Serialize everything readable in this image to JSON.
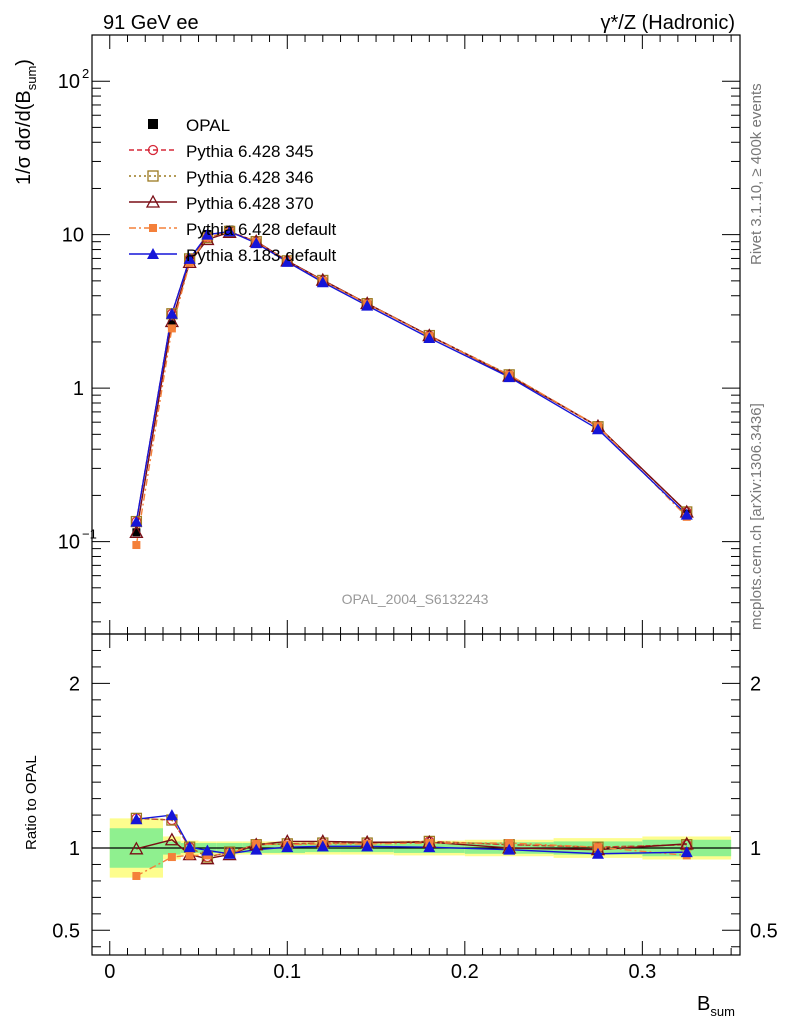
{
  "chart_data": {
    "type": "line",
    "header_left": "91 GeV ee",
    "header_right": "γ*/Z (Hadronic)",
    "watermark": "OPAL_2004_S6132243",
    "side_label_top": "Rivet 3.1.10, ≥ 400k events",
    "side_label_bottom": "mcplots.cern.ch [arXiv:1306.3436]",
    "ylabel_main": "1/σ dσ/d(B_sum)",
    "ylabel_ratio": "Ratio to OPAL",
    "xlabel": "B_sum",
    "xlim": [
      -0.01,
      0.355
    ],
    "ylim_main": [
      0.025,
      200
    ],
    "ylim_ratio": [
      0.35,
      2.3
    ],
    "x_ticks": [
      "0",
      "0.1",
      "0.2",
      "0.3"
    ],
    "x_tick_values": [
      0,
      0.1,
      0.2,
      0.3
    ],
    "y_ticks_main": [
      "10⁻¹",
      "1",
      "10",
      "10²"
    ],
    "y_tick_values_main": [
      0.1,
      1,
      10,
      100
    ],
    "y_ticks_ratio": [
      "0.5",
      "1",
      "2"
    ],
    "y_tick_values_ratio": [
      0.5,
      1,
      2
    ],
    "x": [
      0.015,
      0.035,
      0.045,
      0.055,
      0.0675,
      0.0825,
      0.1,
      0.12,
      0.145,
      0.18,
      0.225,
      0.275,
      0.325
    ],
    "bin_edges": [
      0,
      0.03,
      0.04,
      0.05,
      0.06,
      0.075,
      0.09,
      0.11,
      0.13,
      0.16,
      0.2,
      0.25,
      0.3,
      0.35
    ],
    "data": {
      "name": "OPAL",
      "values": [
        0.115,
        2.6,
        6.9,
        10.1,
        10.8,
        8.8,
        6.6,
        4.9,
        3.45,
        2.12,
        1.19,
        0.56,
        0.152
      ],
      "band_stat": [
        0.12,
        0.04,
        0.03,
        0.03,
        0.03,
        0.03,
        0.03,
        0.025,
        0.025,
        0.03,
        0.035,
        0.04,
        0.05
      ],
      "band_total": [
        0.18,
        0.07,
        0.045,
        0.04,
        0.04,
        0.04,
        0.04,
        0.04,
        0.04,
        0.045,
        0.05,
        0.06,
        0.07
      ]
    },
    "series": [
      {
        "name": "Pythia 6.428 345",
        "color": "#d62839",
        "marker": "open-circle",
        "dash": "5,3",
        "values": [
          0.135,
          3.05,
          6.95,
          9.55,
          10.5,
          9.0,
          6.75,
          5.03,
          3.55,
          2.2,
          1.22,
          0.56,
          0.156
        ],
        "ratio": [
          1.18,
          1.17,
          1.005,
          0.945,
          0.975,
          1.02,
          1.025,
          1.03,
          1.03,
          1.04,
          1.02,
          1.005,
          1.02
        ]
      },
      {
        "name": "Pythia 6.428 346",
        "color": "#9c7a20",
        "marker": "open-square",
        "dash": "2,3",
        "values": [
          0.135,
          3.05,
          6.95,
          9.55,
          10.5,
          9.0,
          6.75,
          5.03,
          3.55,
          2.2,
          1.22,
          0.56,
          0.156
        ],
        "ratio": [
          1.18,
          1.17,
          1.005,
          0.945,
          0.975,
          1.02,
          1.025,
          1.03,
          1.03,
          1.04,
          1.02,
          1.005,
          1.02
        ]
      },
      {
        "name": "Pythia 6.428 370",
        "color": "#7a0e16",
        "marker": "open-triangle",
        "dash": "",
        "values": [
          0.115,
          2.72,
          6.6,
          9.3,
          10.35,
          9.05,
          6.75,
          5.06,
          3.56,
          2.2,
          1.2,
          0.565,
          0.156
        ],
        "ratio": [
          0.995,
          1.05,
          0.96,
          0.935,
          0.96,
          1.02,
          1.04,
          1.04,
          1.035,
          1.035,
          1.0,
          0.99,
          1.025
        ]
      },
      {
        "name": "Pythia 6.428 default",
        "color": "#f4803a",
        "marker": "filled-square",
        "dash": "7,3,2,3",
        "values": [
          0.095,
          2.45,
          6.55,
          9.6,
          10.45,
          9.0,
          6.7,
          5.0,
          3.55,
          2.18,
          1.22,
          0.565,
          0.145
        ],
        "ratio": [
          0.83,
          0.945,
          0.955,
          0.955,
          0.965,
          1.025,
          1.02,
          1.025,
          1.025,
          1.03,
          1.03,
          1.005,
          0.955
        ]
      },
      {
        "name": "Pythia 8.183 default",
        "color": "#1515d8",
        "marker": "filled-triangle",
        "dash": "",
        "values": [
          0.135,
          3.05,
          6.95,
          10.0,
          10.5,
          8.8,
          6.65,
          4.9,
          3.45,
          2.12,
          1.18,
          0.54,
          0.15
        ],
        "ratio": [
          1.175,
          1.2,
          1.005,
          0.985,
          0.965,
          0.99,
          1.005,
          1.01,
          1.01,
          1.005,
          0.99,
          0.965,
          0.975
        ]
      }
    ]
  }
}
